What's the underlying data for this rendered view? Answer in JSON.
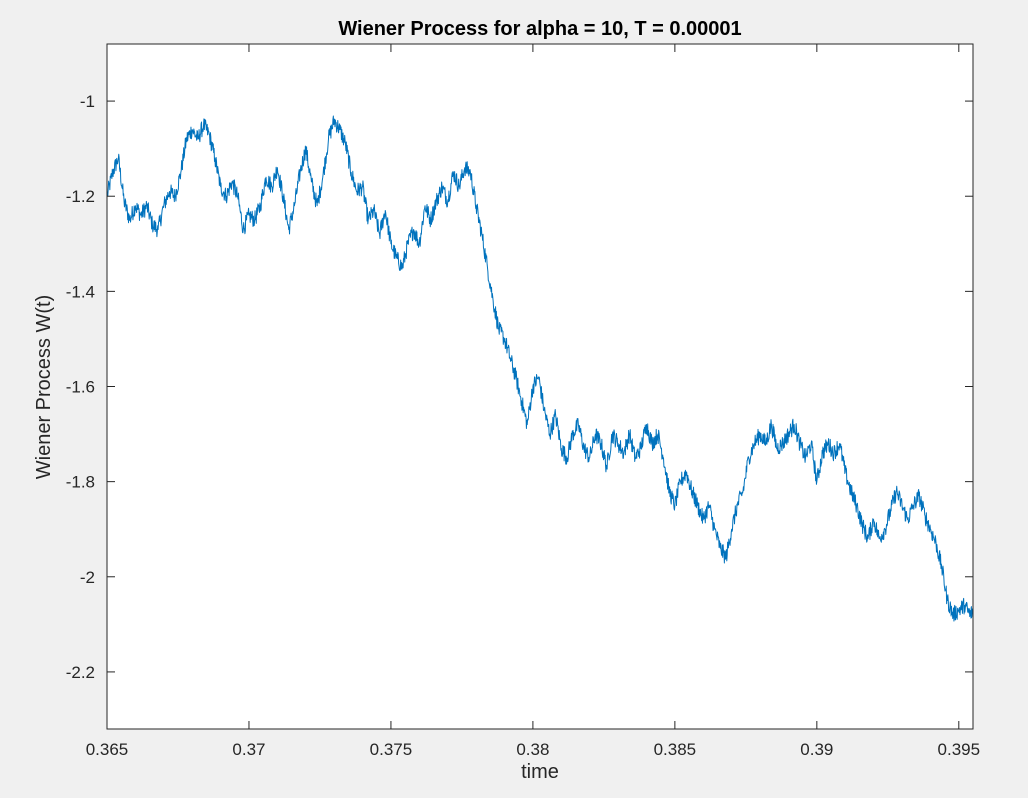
{
  "chart_data": {
    "type": "line",
    "title": "Wiener Process for alpha = 10, T = 0.00001",
    "xlabel": "time",
    "ylabel": "Wiener Process W(t)",
    "xlim": [
      0.365,
      0.3955
    ],
    "ylim": [
      -2.32,
      -0.88
    ],
    "xticks": [
      0.365,
      0.37,
      0.375,
      0.38,
      0.385,
      0.39,
      0.395
    ],
    "xtick_labels": [
      "0.365",
      "0.37",
      "0.375",
      "0.38",
      "0.385",
      "0.39",
      "0.395"
    ],
    "yticks": [
      -1.0,
      -1.2,
      -1.4,
      -1.6,
      -1.8,
      -2.0,
      -2.2
    ],
    "ytick_labels": [
      "-1",
      "-1.2",
      "-1.4",
      "-1.6",
      "-1.8",
      "-2",
      "-2.2"
    ],
    "grid": false,
    "series": [
      {
        "color": "#0072bd",
        "x": [
          0.365,
          0.3652,
          0.3654,
          0.3656,
          0.3658,
          0.366,
          0.3662,
          0.3664,
          0.3666,
          0.3668,
          0.367,
          0.3672,
          0.3674,
          0.3676,
          0.3678,
          0.368,
          0.3682,
          0.3684,
          0.3686,
          0.3688,
          0.369,
          0.3692,
          0.3694,
          0.3696,
          0.3698,
          0.37,
          0.3702,
          0.3704,
          0.3706,
          0.3708,
          0.371,
          0.3712,
          0.3714,
          0.3716,
          0.3718,
          0.372,
          0.3722,
          0.3724,
          0.3726,
          0.3728,
          0.373,
          0.3732,
          0.3734,
          0.3736,
          0.3738,
          0.374,
          0.3742,
          0.3744,
          0.3746,
          0.3748,
          0.375,
          0.3752,
          0.3754,
          0.3756,
          0.3758,
          0.376,
          0.3762,
          0.3764,
          0.3766,
          0.3768,
          0.377,
          0.3772,
          0.3774,
          0.3776,
          0.3778,
          0.378,
          0.3782,
          0.3784,
          0.3786,
          0.3788,
          0.379,
          0.3792,
          0.3794,
          0.3796,
          0.3798,
          0.38,
          0.3802,
          0.3804,
          0.3806,
          0.3808,
          0.381,
          0.3812,
          0.3814,
          0.3816,
          0.3818,
          0.382,
          0.3822,
          0.3824,
          0.3826,
          0.3828,
          0.383,
          0.3832,
          0.3834,
          0.3836,
          0.3838,
          0.384,
          0.3842,
          0.3844,
          0.3846,
          0.3848,
          0.385,
          0.3852,
          0.3854,
          0.3856,
          0.3858,
          0.386,
          0.3862,
          0.3864,
          0.3866,
          0.3868,
          0.387,
          0.3872,
          0.3874,
          0.3876,
          0.3878,
          0.388,
          0.3882,
          0.3884,
          0.3886,
          0.3888,
          0.389,
          0.3892,
          0.3894,
          0.3896,
          0.3898,
          0.39,
          0.3902,
          0.3904,
          0.3906,
          0.3908,
          0.391,
          0.3912,
          0.3914,
          0.3916,
          0.3918,
          0.392,
          0.3922,
          0.3924,
          0.3926,
          0.3928,
          0.393,
          0.3932,
          0.3934,
          0.3936,
          0.3938,
          0.394,
          0.3942,
          0.3944,
          0.3946,
          0.3948,
          0.395,
          0.3952,
          0.3954,
          0.3955
        ],
        "y": [
          -1.2,
          -1.15,
          -1.12,
          -1.21,
          -1.25,
          -1.22,
          -1.24,
          -1.22,
          -1.26,
          -1.27,
          -1.22,
          -1.19,
          -1.2,
          -1.15,
          -1.08,
          -1.06,
          -1.08,
          -1.05,
          -1.07,
          -1.12,
          -1.18,
          -1.2,
          -1.17,
          -1.2,
          -1.27,
          -1.24,
          -1.25,
          -1.22,
          -1.16,
          -1.18,
          -1.14,
          -1.2,
          -1.27,
          -1.22,
          -1.15,
          -1.1,
          -1.17,
          -1.22,
          -1.16,
          -1.08,
          -1.04,
          -1.06,
          -1.09,
          -1.15,
          -1.19,
          -1.18,
          -1.25,
          -1.23,
          -1.28,
          -1.23,
          -1.3,
          -1.33,
          -1.35,
          -1.3,
          -1.27,
          -1.3,
          -1.22,
          -1.25,
          -1.21,
          -1.18,
          -1.21,
          -1.15,
          -1.18,
          -1.14,
          -1.15,
          -1.22,
          -1.28,
          -1.35,
          -1.42,
          -1.48,
          -1.5,
          -1.54,
          -1.58,
          -1.63,
          -1.68,
          -1.6,
          -1.58,
          -1.65,
          -1.7,
          -1.66,
          -1.73,
          -1.75,
          -1.7,
          -1.68,
          -1.73,
          -1.75,
          -1.7,
          -1.72,
          -1.77,
          -1.7,
          -1.72,
          -1.74,
          -1.7,
          -1.75,
          -1.73,
          -1.68,
          -1.72,
          -1.7,
          -1.75,
          -1.82,
          -1.85,
          -1.8,
          -1.78,
          -1.82,
          -1.85,
          -1.88,
          -1.85,
          -1.9,
          -1.94,
          -1.96,
          -1.9,
          -1.85,
          -1.82,
          -1.75,
          -1.72,
          -1.7,
          -1.72,
          -1.68,
          -1.73,
          -1.72,
          -1.7,
          -1.68,
          -1.72,
          -1.75,
          -1.72,
          -1.8,
          -1.74,
          -1.72,
          -1.74,
          -1.72,
          -1.78,
          -1.82,
          -1.85,
          -1.89,
          -1.92,
          -1.88,
          -1.92,
          -1.9,
          -1.86,
          -1.82,
          -1.85,
          -1.88,
          -1.85,
          -1.83,
          -1.87,
          -1.9,
          -1.93,
          -1.98,
          -2.05,
          -2.08,
          -2.07,
          -2.06,
          -2.08,
          -2.07
        ]
      }
    ]
  }
}
